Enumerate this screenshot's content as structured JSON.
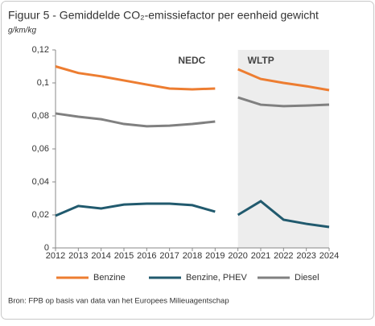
{
  "chart_data": {
    "type": "line",
    "title": "Figuur 5 - Gemiddelde CO₂-emissiefactor per eenheid gewicht",
    "subtitle": "g/km/kg",
    "x": [
      2012,
      2013,
      2014,
      2015,
      2016,
      2017,
      2018,
      2019,
      2020,
      2021,
      2022,
      2023,
      2024
    ],
    "xlim": [
      2012,
      2024
    ],
    "xticks": [
      2012,
      2013,
      2014,
      2015,
      2016,
      2017,
      2018,
      2019,
      2020,
      2021,
      2022,
      2023,
      2024
    ],
    "ylim": [
      0,
      0.12
    ],
    "yticks": [
      0,
      {
        "value": 0.02,
        "label": "0,02"
      },
      {
        "value": 0.04,
        "label": "0,04"
      },
      {
        "value": 0.06,
        "label": "0,06"
      },
      {
        "value": 0.08,
        "label": "0,08"
      },
      {
        "value": 0.1,
        "label": "0,1"
      },
      {
        "value": 0.12,
        "label": "0,12"
      }
    ],
    "grid": false,
    "regions": [
      {
        "label": "NEDC",
        "from": 2012,
        "to": 2019,
        "shaded": false
      },
      {
        "label": "WLTP",
        "from": 2020,
        "to": 2024,
        "shaded": true,
        "color": "#ededed"
      }
    ],
    "series": [
      {
        "name": "Benzine",
        "color": "#ed7d31",
        "values": [
          0.11,
          0.106,
          0.104,
          0.1015,
          0.099,
          0.0966,
          0.0961,
          0.0966,
          0.1083,
          0.1024,
          0.1,
          0.098,
          0.0956
        ]
      },
      {
        "name": "Benzine, PHEV",
        "color": "#215a6e",
        "values": [
          0.0195,
          0.0254,
          0.0239,
          0.0263,
          0.0268,
          0.0268,
          0.0259,
          0.022,
          0.02,
          0.0283,
          0.0171,
          0.0146,
          0.0127
        ]
      },
      {
        "name": "Diesel",
        "color": "#808080",
        "values": [
          0.0815,
          0.0795,
          0.078,
          0.0751,
          0.0737,
          0.0741,
          0.0751,
          0.0766,
          0.0912,
          0.0868,
          0.0859,
          0.0863,
          0.0868
        ]
      }
    ],
    "source": "Bron: FPB op basis van data van het Europees Milieuagentschap"
  }
}
